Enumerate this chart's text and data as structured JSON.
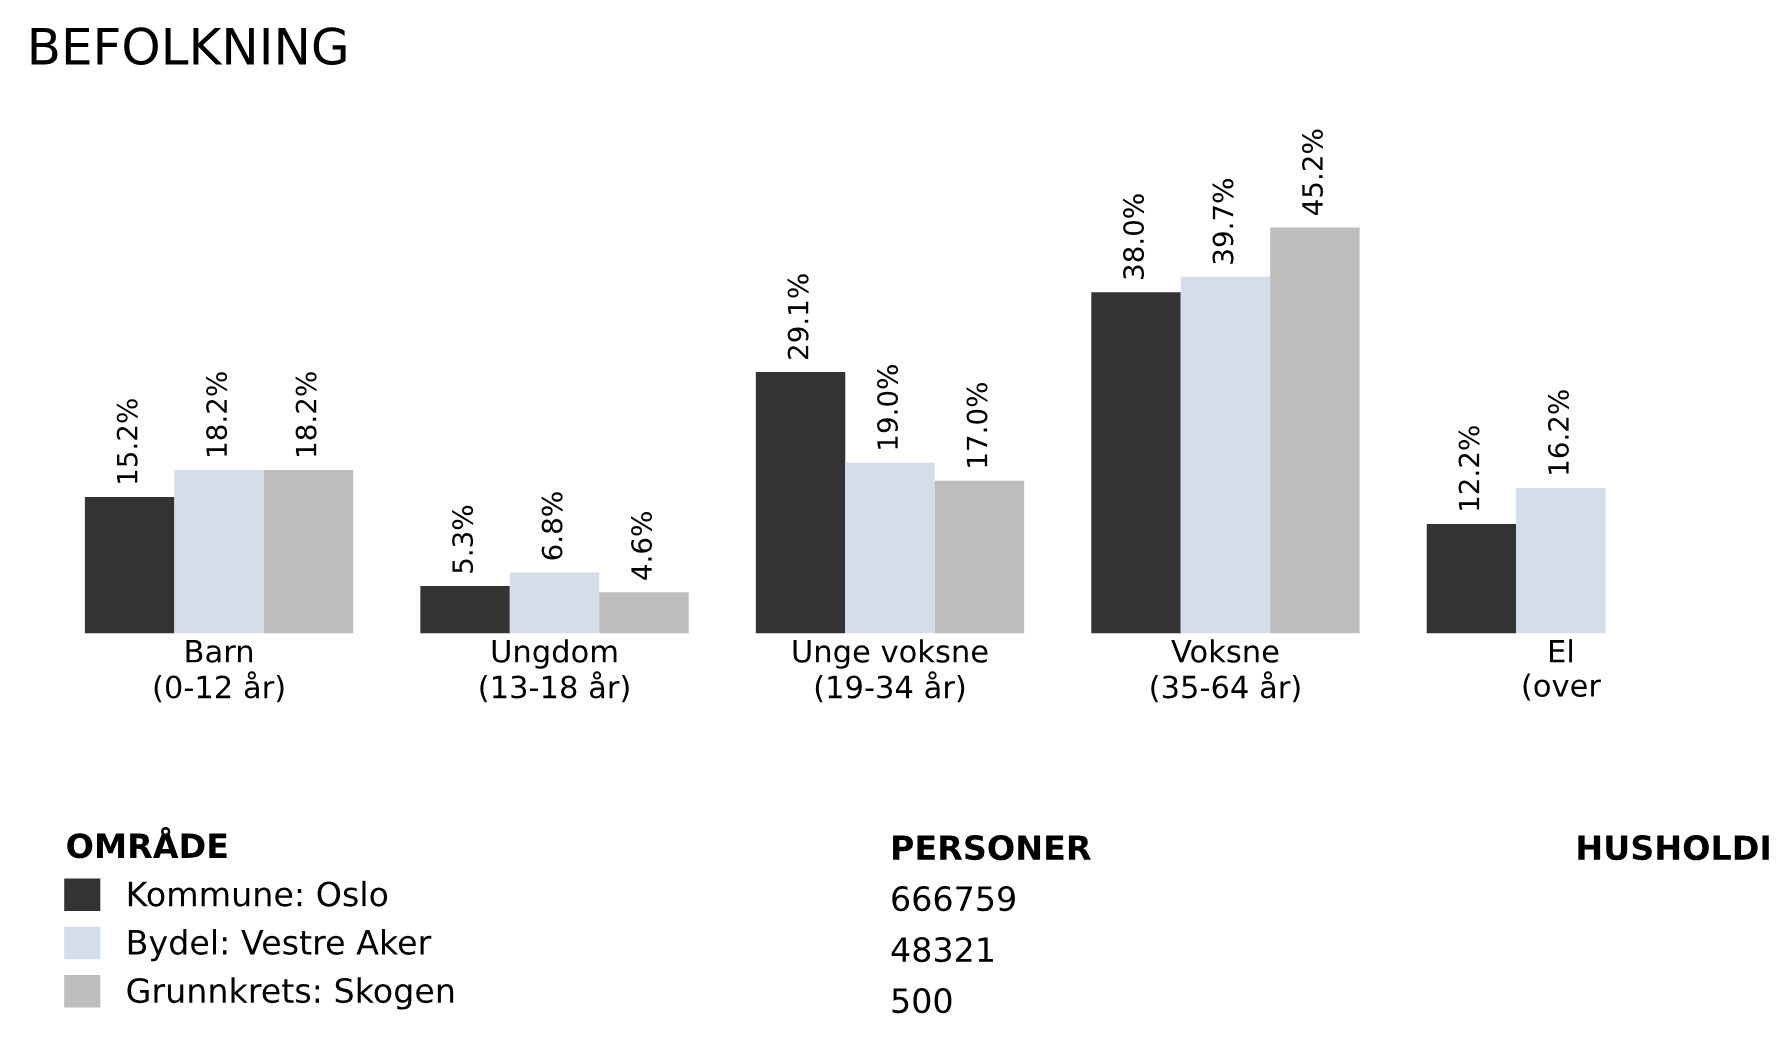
{
  "chart_data": {
    "type": "bar",
    "title": "BEFOLKNING",
    "categories": [
      "Barn\n(0-12 år)",
      "Ungdom\n(13-18 år)",
      "Unge voksne\n(19-34 år)",
      "Voksne\n(35-64 år)",
      "El\n(over"
    ],
    "series": [
      {
        "name": "Kommune: Oslo",
        "color": "#333333",
        "values": [
          15.2,
          5.3,
          29.1,
          38.0,
          12.2
        ],
        "value_labels": [
          "15.2%",
          "5.3%",
          "29.1%",
          "38.0%",
          "12.2%"
        ]
      },
      {
        "name": "Bydel: Vestre Aker",
        "color": "#d3deea",
        "values": [
          18.2,
          6.8,
          19.0,
          39.7,
          16.2
        ],
        "value_labels": [
          "18.2%",
          "6.8%",
          "19.0%",
          "39.7%",
          "16.2%"
        ]
      },
      {
        "name": "Grunnkrets: Skogen",
        "color": "#bdbdbb",
        "values": [
          18.2,
          4.6,
          17.0,
          45.2,
          null
        ],
        "value_labels": [
          "18.2%",
          "4.6%",
          "17.0%",
          "45.2%",
          null
        ]
      }
    ],
    "legend": "bottom",
    "legend_title": "OMRÅDE",
    "annotations": [
      "PERSONER",
      "666759",
      "48321",
      "500",
      "HUSHOLDI"
    ]
  }
}
